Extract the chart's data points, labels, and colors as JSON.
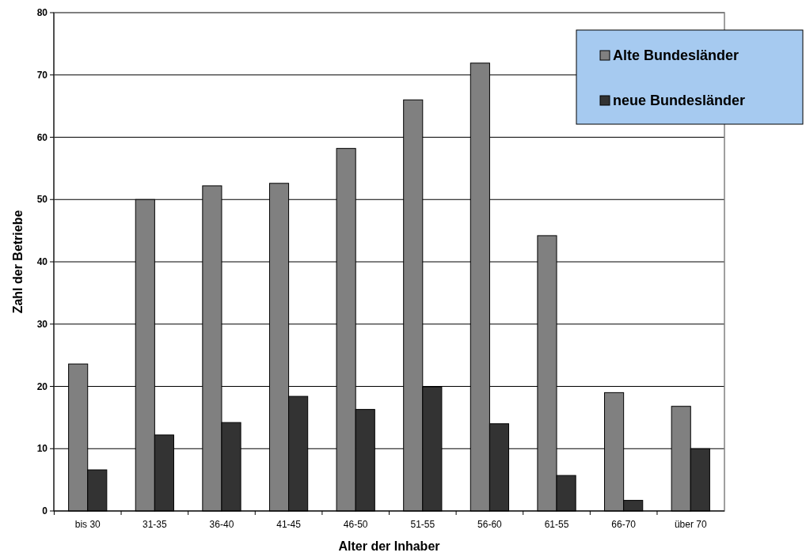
{
  "chart_data": {
    "type": "bar",
    "xlabel": "Alter der Inhaber",
    "ylabel": "Zahl der Betriebe",
    "categories": [
      "bis 30",
      "31-35",
      "36-40",
      "41-45",
      "46-50",
      "51-55",
      "56-60",
      "61-55",
      "66-70",
      "über 70"
    ],
    "series": [
      {
        "name": "Alte Bundesländer",
        "color": "#808080",
        "values": [
          23.6,
          50,
          52.2,
          52.6,
          58.2,
          66,
          71.9,
          44.2,
          19,
          16.8
        ]
      },
      {
        "name": "neue Bundesländer",
        "color": "#333333",
        "values": [
          6.6,
          12.2,
          14.2,
          18.4,
          16.3,
          19.9,
          14,
          5.7,
          1.7,
          10
        ]
      }
    ],
    "ylim": [
      0,
      80
    ],
    "yticks": [
      0,
      10,
      20,
      30,
      40,
      50,
      60,
      70,
      80
    ],
    "grid": "y",
    "legend": "top right"
  }
}
